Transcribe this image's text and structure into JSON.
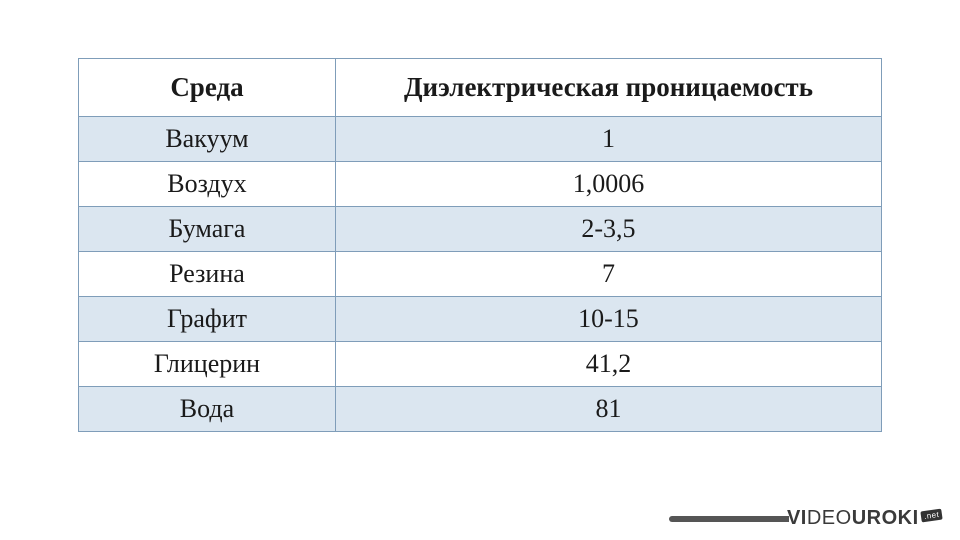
{
  "table": {
    "type": "table",
    "columns": [
      {
        "label": "Среда",
        "width_pct": 32,
        "align": "center"
      },
      {
        "label": "Диэлектрическая проницаемость",
        "width_pct": 68,
        "align": "center"
      }
    ],
    "rows": [
      {
        "medium": "Вакуум",
        "value": "1"
      },
      {
        "medium": "Воздух",
        "value": "1,0006"
      },
      {
        "medium": "Бумага",
        "value": "2-3,5"
      },
      {
        "medium": "Резина",
        "value": "7"
      },
      {
        "medium": "Графит",
        "value": "10-15"
      },
      {
        "medium": "Глицерин",
        "value": "41,2"
      },
      {
        "medium": "Вода",
        "value": "81"
      }
    ],
    "header_bg": "#ffffff",
    "stripe_bg": "#dbe6f0",
    "plain_bg": "#ffffff",
    "border_color": "#7f9db9",
    "header_fontsize": 27,
    "body_fontsize": 26,
    "text_color": "#1a1a1a",
    "header_row_height": 58,
    "body_row_height": 45
  },
  "watermark": {
    "vi": "VI",
    "deo": "DEO",
    "uroki": "UROKI",
    "badge": ".net",
    "text_color": "#3a3a3a",
    "bar_color": "#555555"
  }
}
